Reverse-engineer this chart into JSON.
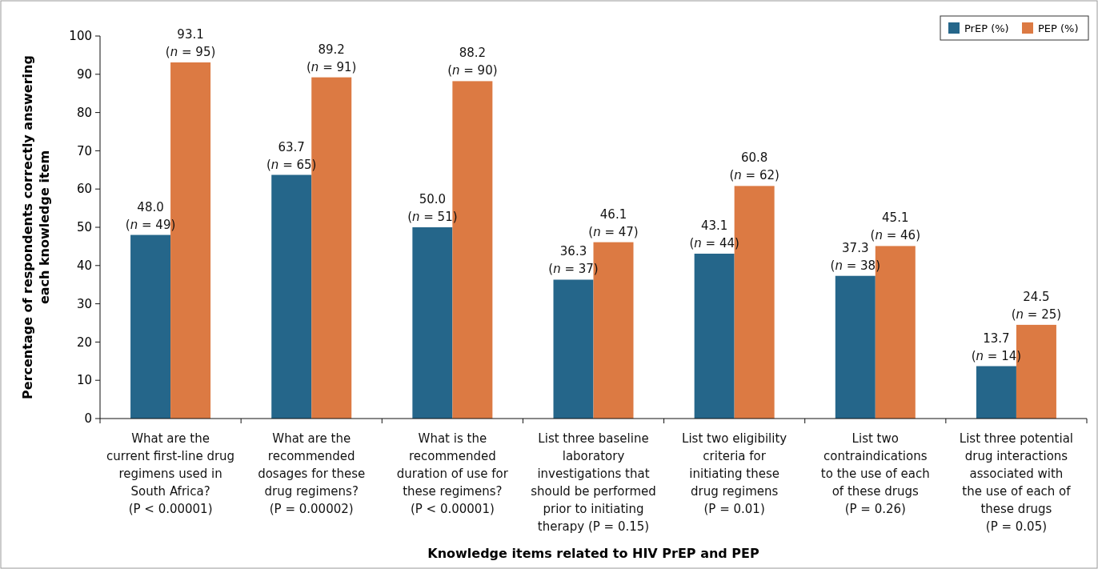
{
  "chart_data": {
    "type": "bar",
    "xlabel": "Knowledge items related to HIV PrEP and PEP",
    "ylabel": "Percentage of respondents correctly answering\neach knowledge item",
    "categories": [
      "What are the\ncurrent first-line drug\nregimens used in\nSouth Africa?\n(P < 0.00001)",
      "What are the\nrecommended\ndosages for these\ndrug regimens?\n(P = 0.00002)",
      "What is the\nrecommended\nduration of use for\nthese regimens?\n(P < 0.00001)",
      "List three baseline\nlaboratory\ninvestigations that\nshould be performed\nprior to initiating\ntherapy (P = 0.15)",
      "List two eligibility\ncriteria for\ninitiating these\ndrug regimens\n(P = 0.01)",
      "List two\ncontraindications\nto the use of each\nof these drugs\n(P = 0.26)",
      "List three potential\ndrug interactions\nassociated with\nthe use of each of\nthese drugs\n(P = 0.05)"
    ],
    "series": [
      {
        "name": "PrEP (%)",
        "color": "#25668a",
        "values": [
          48.0,
          63.7,
          50.0,
          36.3,
          43.1,
          37.3,
          13.7
        ],
        "value_labels": [
          "48.0\n(n = 49)",
          "63.7\n(n = 65)",
          "50.0\n(n = 51)",
          "36.3\n(n = 37)",
          "43.1\n(n = 44)",
          "37.3\n(n = 38)",
          "13.7\n(n = 14)"
        ]
      },
      {
        "name": "PEP (%)",
        "color": "#dc7a43",
        "values": [
          93.1,
          89.2,
          88.2,
          46.1,
          60.8,
          45.1,
          24.5
        ],
        "value_labels": [
          "93.1\n(n = 95)",
          "89.2\n(n = 91)",
          "88.2\n(n = 90)",
          "46.1\n(n = 47)",
          "60.8\n(n = 62)",
          "45.1\n(n = 46)",
          "24.5\n(n = 25)"
        ]
      }
    ],
    "ylim": [
      0,
      100
    ],
    "yticks": [
      0,
      10,
      20,
      30,
      40,
      50,
      60,
      70,
      80,
      90,
      100
    ],
    "grid": false,
    "legend": "top right"
  }
}
